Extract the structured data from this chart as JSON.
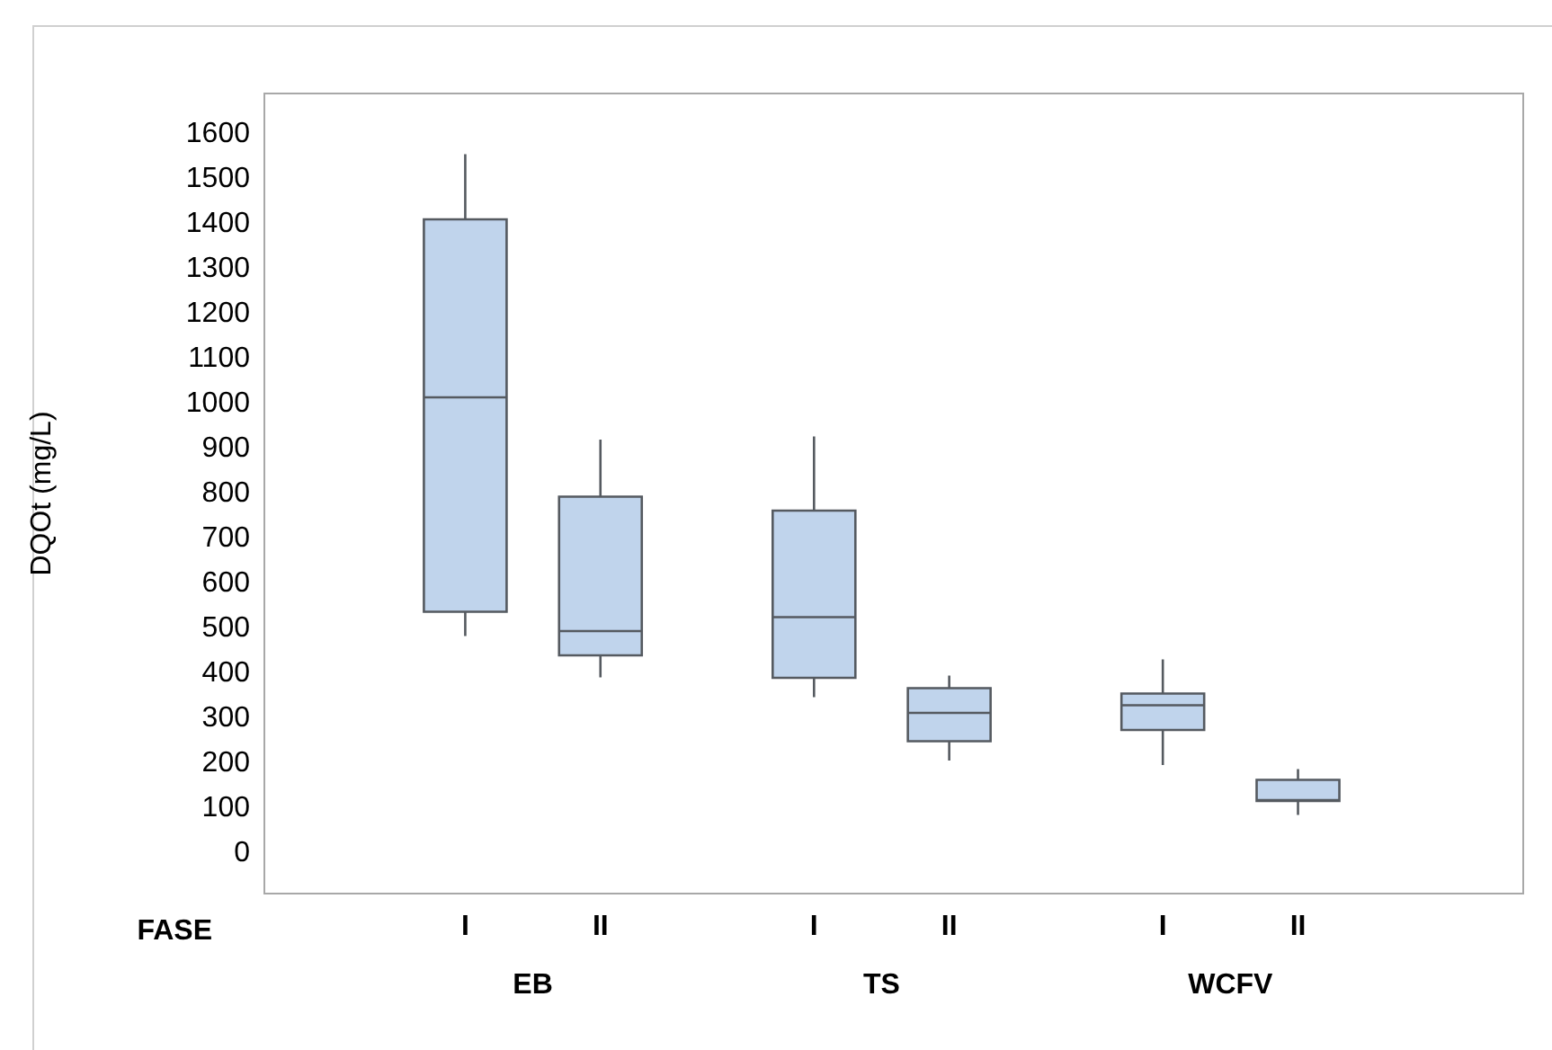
{
  "chart_data": {
    "type": "box",
    "xlabel": "FASE",
    "ylabel": "DQOt (mg/L)",
    "categories": [
      "I",
      "II",
      "I",
      "II",
      "I",
      "II"
    ],
    "annotations": [
      "EB",
      "TS",
      "WCFV"
    ],
    "color": "#c0d4ec",
    "boxes": [
      {
        "low": 483,
        "q1": 537,
        "median": 1014,
        "q3": 1410,
        "high": 1555
      },
      {
        "low": 391,
        "q1": 440,
        "median": 494,
        "q3": 793,
        "high": 920
      },
      {
        "low": 347,
        "q1": 390,
        "median": 525,
        "q3": 762,
        "high": 927
      },
      {
        "low": 206,
        "q1": 249,
        "median": 312,
        "q3": 367,
        "high": 395
      },
      {
        "low": 196,
        "q1": 274,
        "median": 329,
        "q3": 355,
        "high": 431
      },
      {
        "low": 85,
        "q1": 116,
        "median": 118,
        "q3": 163,
        "high": 187
      }
    ],
    "ylim": [
      -90,
      1690
    ],
    "yticks": [
      0,
      100,
      200,
      300,
      400,
      500,
      600,
      700,
      800,
      900,
      1000,
      1100,
      1200,
      1300,
      1400,
      1500,
      1600
    ]
  }
}
